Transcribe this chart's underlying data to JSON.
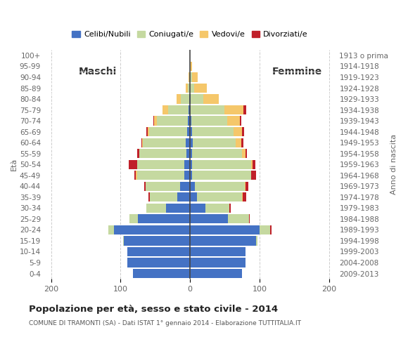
{
  "age_groups": [
    "0-4",
    "5-9",
    "10-14",
    "15-19",
    "20-24",
    "25-29",
    "30-34",
    "35-39",
    "40-44",
    "45-49",
    "50-54",
    "55-59",
    "60-64",
    "65-69",
    "70-74",
    "75-79",
    "80-84",
    "85-89",
    "90-94",
    "95-99",
    "100+"
  ],
  "birth_years": [
    "2009-2013",
    "2004-2008",
    "1999-2003",
    "1994-1998",
    "1989-1993",
    "1984-1988",
    "1979-1983",
    "1974-1978",
    "1969-1973",
    "1964-1968",
    "1959-1963",
    "1954-1958",
    "1949-1953",
    "1944-1948",
    "1939-1943",
    "1934-1938",
    "1929-1933",
    "1924-1928",
    "1919-1923",
    "1914-1918",
    "1913 o prima"
  ],
  "male": {
    "celibe": [
      82,
      90,
      90,
      95,
      110,
      75,
      35,
      18,
      14,
      8,
      8,
      5,
      6,
      4,
      3,
      2,
      1,
      0,
      0,
      0,
      0
    ],
    "coniugato": [
      0,
      0,
      0,
      1,
      8,
      12,
      28,
      40,
      50,
      68,
      68,
      68,
      62,
      55,
      45,
      30,
      12,
      3,
      1,
      0,
      0
    ],
    "vedovo": [
      0,
      0,
      0,
      0,
      0,
      0,
      0,
      0,
      0,
      2,
      0,
      0,
      1,
      2,
      4,
      8,
      6,
      3,
      1,
      0,
      0
    ],
    "divorziato": [
      0,
      0,
      0,
      0,
      0,
      0,
      0,
      2,
      2,
      2,
      12,
      3,
      1,
      2,
      1,
      0,
      0,
      0,
      0,
      0,
      0
    ]
  },
  "female": {
    "celibe": [
      75,
      80,
      80,
      95,
      100,
      55,
      22,
      10,
      7,
      3,
      3,
      3,
      4,
      3,
      2,
      1,
      1,
      0,
      0,
      0,
      0
    ],
    "coniugato": [
      0,
      0,
      0,
      2,
      15,
      30,
      35,
      65,
      72,
      85,
      85,
      72,
      62,
      60,
      52,
      48,
      18,
      6,
      3,
      0,
      0
    ],
    "vedovo": [
      0,
      0,
      0,
      0,
      0,
      0,
      0,
      1,
      1,
      0,
      2,
      5,
      8,
      12,
      18,
      28,
      22,
      18,
      8,
      3,
      0
    ],
    "divorziato": [
      0,
      0,
      0,
      0,
      2,
      1,
      2,
      5,
      4,
      7,
      4,
      2,
      3,
      3,
      2,
      4,
      0,
      0,
      0,
      0,
      0
    ]
  },
  "colors": {
    "celibe": "#4472C4",
    "coniugato": "#C5D9A0",
    "vedovo": "#F5C76A",
    "divorziato": "#C0202A"
  },
  "xlim": [
    -210,
    210
  ],
  "xticks": [
    -200,
    -100,
    0,
    100,
    200
  ],
  "xticklabels": [
    "200",
    "100",
    "0",
    "100",
    "200"
  ],
  "title": "Popolazione per età, sesso e stato civile - 2014",
  "subtitle": "COMUNE DI TRAMONTI (SA) - Dati ISTAT 1° gennaio 2014 - Elaborazione TUTTITALIA.IT",
  "ylabel_left": "Età",
  "ylabel_right": "Anno di nascita",
  "label_maschi": "Maschi",
  "label_femmine": "Femmine",
  "legend_labels": [
    "Celibi/Nubili",
    "Coniugati/e",
    "Vedovi/e",
    "Divorziati/e"
  ]
}
